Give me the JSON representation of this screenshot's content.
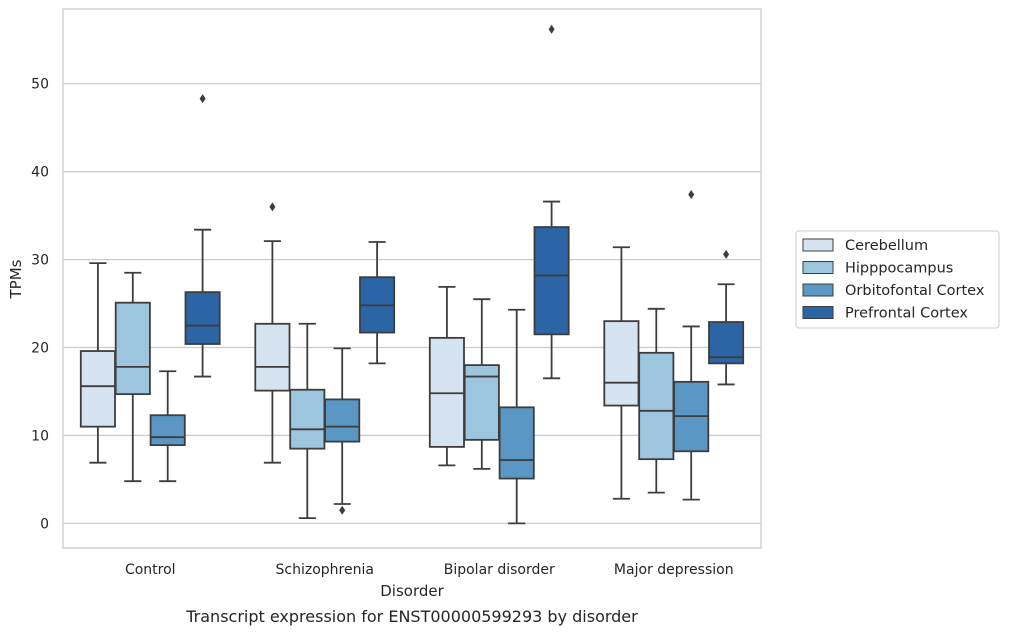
{
  "caption": "Transcript expression for ENST00000599293 by disorder",
  "chart_data": {
    "type": "box",
    "title": "",
    "xlabel": "Disorder",
    "ylabel": "TPMs",
    "ylim": [
      -2.8,
      58.5
    ],
    "yticks": [
      0,
      10,
      20,
      30,
      40,
      50
    ],
    "grid": "horizontal",
    "legend_position": "right",
    "categories": [
      "Control",
      "Schizophrenia",
      "Bipolar disorder",
      "Major depression"
    ],
    "series": [
      {
        "name": "Cerebellum",
        "color": "#d6e4f2",
        "boxes": [
          {
            "whisker_low": 6.9,
            "q1": 11.0,
            "median": 15.6,
            "q3": 19.6,
            "whisker_high": 29.6,
            "outliers": []
          },
          {
            "whisker_low": 6.9,
            "q1": 15.1,
            "median": 17.8,
            "q3": 22.7,
            "whisker_high": 32.1,
            "outliers": [
              36.0
            ]
          },
          {
            "whisker_low": 6.6,
            "q1": 8.7,
            "median": 14.8,
            "q3": 21.1,
            "whisker_high": 26.9,
            "outliers": []
          },
          {
            "whisker_low": 2.8,
            "q1": 13.4,
            "median": 16.0,
            "q3": 23.0,
            "whisker_high": 31.4,
            "outliers": []
          }
        ]
      },
      {
        "name": "Hipppocampus",
        "color": "#9ec5de",
        "boxes": [
          {
            "whisker_low": 4.8,
            "q1": 14.7,
            "median": 17.8,
            "q3": 25.1,
            "whisker_high": 28.5,
            "outliers": []
          },
          {
            "whisker_low": 0.6,
            "q1": 8.5,
            "median": 10.7,
            "q3": 15.2,
            "whisker_high": 22.7,
            "outliers": []
          },
          {
            "whisker_low": 6.2,
            "q1": 9.5,
            "median": 16.7,
            "q3": 18.0,
            "whisker_high": 25.5,
            "outliers": []
          },
          {
            "whisker_low": 3.5,
            "q1": 7.3,
            "median": 12.8,
            "q3": 19.4,
            "whisker_high": 24.4,
            "outliers": []
          }
        ]
      },
      {
        "name": "Orbitofontal Cortex",
        "color": "#5b97c4",
        "boxes": [
          {
            "whisker_low": 4.8,
            "q1": 8.9,
            "median": 9.8,
            "q3": 12.3,
            "whisker_high": 17.3,
            "outliers": []
          },
          {
            "whisker_low": 2.2,
            "q1": 9.3,
            "median": 11.0,
            "q3": 14.1,
            "whisker_high": 19.9,
            "outliers": [
              1.5
            ]
          },
          {
            "whisker_low": 0.0,
            "q1": 5.1,
            "median": 7.2,
            "q3": 13.2,
            "whisker_high": 24.3,
            "outliers": []
          },
          {
            "whisker_low": 2.7,
            "q1": 8.2,
            "median": 12.2,
            "q3": 16.1,
            "whisker_high": 22.4,
            "outliers": [
              37.4
            ]
          }
        ]
      },
      {
        "name": "Prefrontal Cortex",
        "color": "#2b65a6",
        "boxes": [
          {
            "whisker_low": 16.7,
            "q1": 20.4,
            "median": 22.5,
            "q3": 26.3,
            "whisker_high": 33.4,
            "outliers": [
              48.3
            ]
          },
          {
            "whisker_low": 18.2,
            "q1": 21.7,
            "median": 24.8,
            "q3": 28.0,
            "whisker_high": 32.0,
            "outliers": []
          },
          {
            "whisker_low": 16.5,
            "q1": 21.5,
            "median": 28.2,
            "q3": 33.7,
            "whisker_high": 36.6,
            "outliers": [
              56.2
            ]
          },
          {
            "whisker_low": 15.8,
            "q1": 18.2,
            "median": 18.9,
            "q3": 22.9,
            "whisker_high": 27.2,
            "outliers": [
              30.6
            ]
          }
        ]
      }
    ]
  }
}
